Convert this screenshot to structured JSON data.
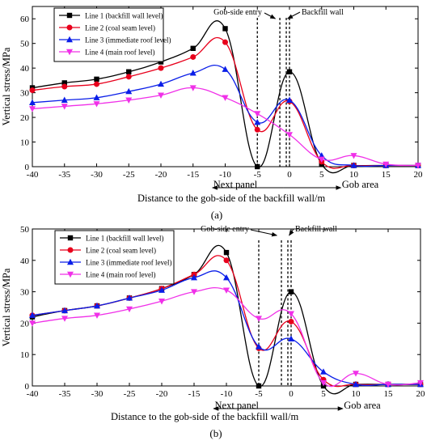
{
  "figure": {
    "colors": {
      "line1": "#000000",
      "line2": "#e8001c",
      "line3": "#0a1ee8",
      "line4": "#f030e8"
    }
  },
  "chart_data": [
    {
      "id": "a",
      "type": "line",
      "panel_label": "(a)",
      "ylabel": "Vertical stress/MPa",
      "xlabel": "Distance to the gob-side of the backfill wall/m",
      "xlim": [
        -40,
        20
      ],
      "ylim": [
        0,
        65
      ],
      "xticks": [
        -40,
        -35,
        -30,
        -25,
        -20,
        -15,
        -10,
        -5,
        0,
        5,
        10,
        15,
        20
      ],
      "yticks": [
        0,
        10,
        20,
        30,
        40,
        50,
        60
      ],
      "legend_position": "top-left",
      "series": [
        {
          "name": "Line 1 (backfill wall level)",
          "color": "#000000",
          "marker": "square",
          "points": [
            [
              -40,
              32
            ],
            [
              -35,
              34
            ],
            [
              -30,
              35.5
            ],
            [
              -25,
              38.5
            ],
            [
              -20,
              42.5
            ],
            [
              -15,
              48
            ],
            [
              -10,
              56
            ],
            [
              -5,
              0
            ],
            [
              0,
              38.5
            ],
            [
              5,
              1
            ],
            [
              10,
              0.5
            ],
            [
              15,
              0.5
            ],
            [
              20,
              0.5
            ]
          ]
        },
        {
          "name": "Line 2 (coal seam level)",
          "color": "#e8001c",
          "marker": "circle",
          "points": [
            [
              -40,
              31
            ],
            [
              -35,
              32.5
            ],
            [
              -30,
              33.5
            ],
            [
              -25,
              36.5
            ],
            [
              -20,
              40
            ],
            [
              -15,
              44.5
            ],
            [
              -10,
              50.5
            ],
            [
              -5,
              15
            ],
            [
              0,
              26.5
            ],
            [
              5,
              2
            ],
            [
              10,
              0.5
            ],
            [
              15,
              0.5
            ],
            [
              20,
              0.5
            ]
          ]
        },
        {
          "name": "Line 3 (immediate roof level)",
          "color": "#0a1ee8",
          "marker": "triangle-up",
          "points": [
            [
              -40,
              26
            ],
            [
              -35,
              27
            ],
            [
              -30,
              28
            ],
            [
              -25,
              30.5
            ],
            [
              -20,
              33.5
            ],
            [
              -15,
              38
            ],
            [
              -10,
              39.5
            ],
            [
              -5,
              18
            ],
            [
              0,
              27
            ],
            [
              5,
              4.5
            ],
            [
              10,
              0.5
            ],
            [
              15,
              0.5
            ],
            [
              20,
              0.5
            ]
          ]
        },
        {
          "name": "Line 4 (main roof level)",
          "color": "#f030e8",
          "marker": "triangle-down",
          "points": [
            [
              -40,
              23.5
            ],
            [
              -35,
              24.5
            ],
            [
              -30,
              25.5
            ],
            [
              -25,
              27
            ],
            [
              -20,
              29
            ],
            [
              -15,
              32
            ],
            [
              -10,
              28
            ],
            [
              -5,
              21.5
            ],
            [
              0,
              13
            ],
            [
              5,
              3
            ],
            [
              10,
              4.5
            ],
            [
              15,
              1
            ],
            [
              20,
              0.5
            ]
          ]
        }
      ],
      "vlines": [
        -5,
        -1.5,
        -0.5,
        0
      ],
      "annotations": {
        "gob_side_entry": "Gob-side entry",
        "backfill_wall": "Backfill wall",
        "next_panel": "Next panel",
        "gob_area": "Gob area"
      }
    },
    {
      "id": "b",
      "type": "line",
      "panel_label": "(b)",
      "ylabel": "Vertical stress/MPa",
      "xlabel": "Distance to the gob-side of the backfill wall/m",
      "xlim": [
        -40,
        20
      ],
      "ylim": [
        0,
        50
      ],
      "xticks": [
        -40,
        -35,
        -30,
        -25,
        -20,
        -15,
        -10,
        -5,
        0,
        5,
        10,
        15,
        20
      ],
      "yticks": [
        0,
        10,
        20,
        30,
        40,
        50
      ],
      "legend_position": "top-left",
      "series": [
        {
          "name": "Line 1 (backfill wall level)",
          "color": "#000000",
          "marker": "square",
          "points": [
            [
              -40,
              22
            ],
            [
              -35,
              24
            ],
            [
              -30,
              25.5
            ],
            [
              -25,
              28
            ],
            [
              -20,
              31
            ],
            [
              -15,
              35.5
            ],
            [
              -10,
              42.5
            ],
            [
              -5,
              0
            ],
            [
              0,
              30
            ],
            [
              5,
              0
            ],
            [
              10,
              0.5
            ],
            [
              15,
              0.5
            ],
            [
              20,
              0.5
            ]
          ]
        },
        {
          "name": "Line 2 (coal seam level)",
          "color": "#e8001c",
          "marker": "circle",
          "points": [
            [
              -40,
              22.5
            ],
            [
              -35,
              24
            ],
            [
              -30,
              25.5
            ],
            [
              -25,
              28
            ],
            [
              -20,
              31
            ],
            [
              -15,
              35.5
            ],
            [
              -10,
              40
            ],
            [
              -5,
              12
            ],
            [
              0,
              20.5
            ],
            [
              5,
              2
            ],
            [
              10,
              0.5
            ],
            [
              15,
              0.5
            ],
            [
              20,
              0.5
            ]
          ]
        },
        {
          "name": "Line 3 (immediate roof level)",
          "color": "#0a1ee8",
          "marker": "triangle-up",
          "points": [
            [
              -40,
              22.5
            ],
            [
              -35,
              24
            ],
            [
              -30,
              25.5
            ],
            [
              -25,
              28
            ],
            [
              -20,
              30.5
            ],
            [
              -15,
              34.5
            ],
            [
              -10,
              34.5
            ],
            [
              -5,
              12.5
            ],
            [
              0,
              15
            ],
            [
              5,
              4.5
            ],
            [
              10,
              0.5
            ],
            [
              15,
              0.5
            ],
            [
              20,
              0.5
            ]
          ]
        },
        {
          "name": "Line 4 (main roof level)",
          "color": "#f030e8",
          "marker": "triangle-down",
          "points": [
            [
              -40,
              20
            ],
            [
              -35,
              21.5
            ],
            [
              -30,
              22.5
            ],
            [
              -25,
              24.5
            ],
            [
              -20,
              27
            ],
            [
              -15,
              30
            ],
            [
              -10,
              30.5
            ],
            [
              -5,
              21.5
            ],
            [
              0,
              23
            ],
            [
              5,
              1
            ],
            [
              10,
              4
            ],
            [
              15,
              0.5
            ],
            [
              20,
              1
            ]
          ]
        }
      ],
      "vlines": [
        -5,
        -1.5,
        -0.5,
        0
      ],
      "annotations": {
        "gob_side_entry": "Gob-side entry",
        "backfill_wall": "Backfill wall",
        "next_panel": "Next panel",
        "gob_area": "Gob area"
      }
    }
  ]
}
